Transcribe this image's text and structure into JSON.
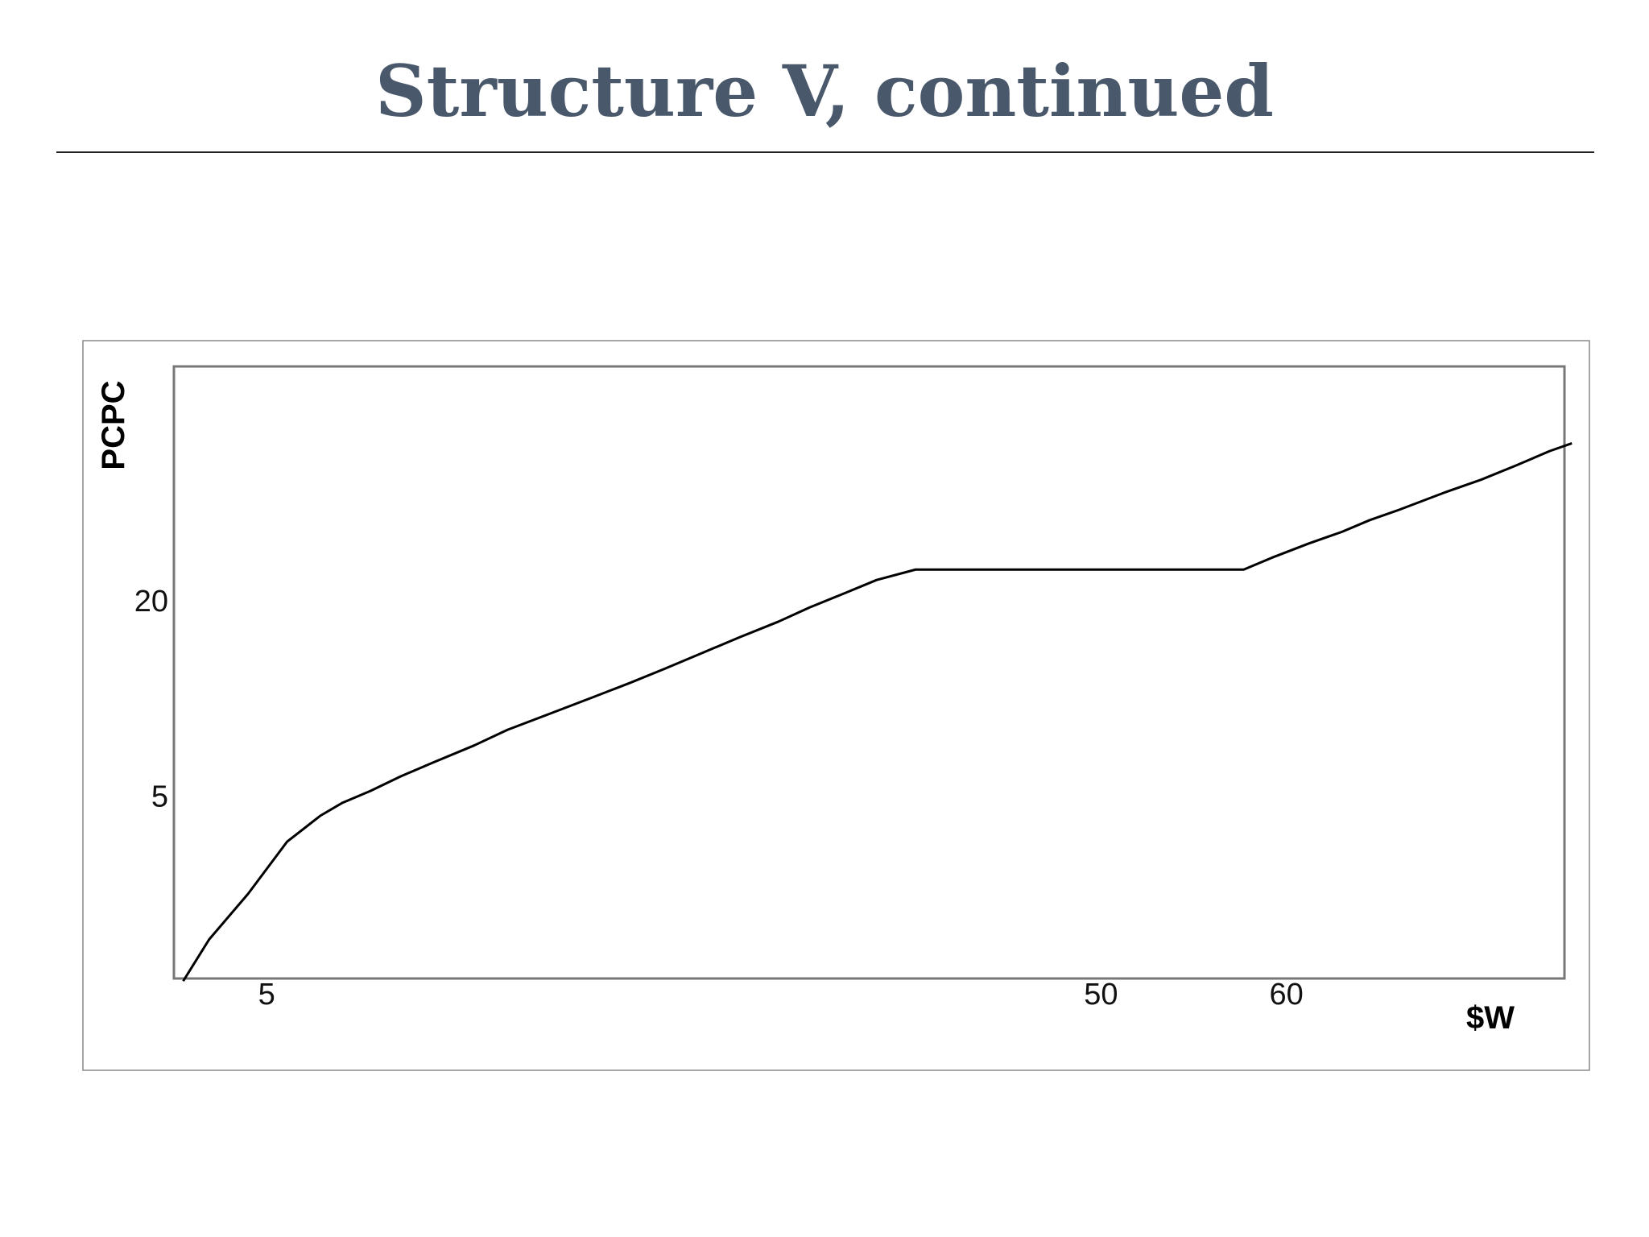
{
  "slide": {
    "title": "Structure V, continued"
  },
  "chart_data": {
    "type": "line",
    "title": "",
    "xlabel": "$W",
    "ylabel": "PCPC",
    "x_ticks": [
      5,
      50,
      60
    ],
    "y_ticks": [
      5,
      20
    ],
    "xlim": [
      0,
      75
    ],
    "ylim": [
      -9,
      38
    ],
    "grid": false,
    "legend": "none",
    "series": [
      {
        "color": "#000000",
        "points": [
          [
            0.5,
            -9.2
          ],
          [
            1.9,
            -6.0
          ],
          [
            4.0,
            -2.5
          ],
          [
            6.1,
            1.5
          ],
          [
            7.9,
            3.5
          ],
          [
            9.1,
            4.5
          ],
          [
            10.6,
            5.4
          ],
          [
            12.2,
            6.5
          ],
          [
            14.0,
            7.6
          ],
          [
            16.2,
            8.9
          ],
          [
            18.0,
            10.1
          ],
          [
            20.4,
            11.4
          ],
          [
            22.6,
            12.6
          ],
          [
            24.6,
            13.7
          ],
          [
            26.5,
            14.8
          ],
          [
            28.5,
            16.0
          ],
          [
            30.5,
            17.2
          ],
          [
            32.6,
            18.4
          ],
          [
            34.3,
            19.5
          ],
          [
            36.2,
            20.6
          ],
          [
            37.9,
            21.6
          ],
          [
            40.0,
            22.4
          ],
          [
            45.0,
            22.4
          ],
          [
            50.0,
            22.4
          ],
          [
            55.0,
            22.4
          ],
          [
            57.7,
            22.4
          ],
          [
            59.2,
            23.3
          ],
          [
            61.2,
            24.4
          ],
          [
            63.0,
            25.3
          ],
          [
            64.5,
            26.2
          ],
          [
            66.1,
            27.0
          ],
          [
            68.5,
            28.3
          ],
          [
            70.5,
            29.3
          ],
          [
            72.4,
            30.4
          ],
          [
            74.2,
            31.5
          ],
          [
            75.4,
            32.1
          ]
        ]
      }
    ]
  }
}
